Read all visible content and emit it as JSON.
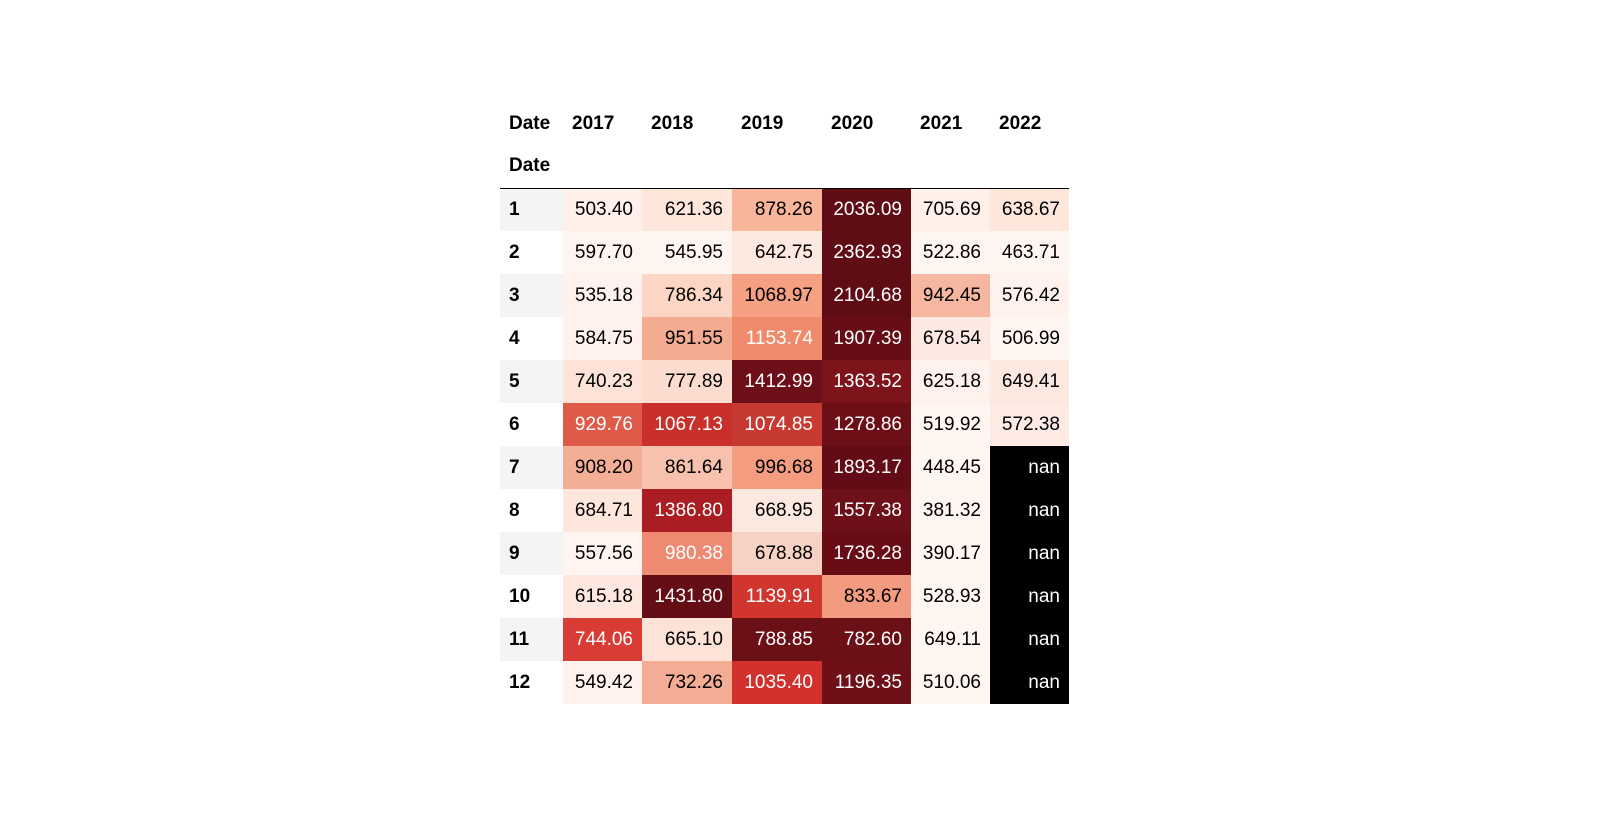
{
  "table": {
    "column_axis_name": "Date",
    "index_name": "Date",
    "columns": [
      "2017",
      "2018",
      "2019",
      "2020",
      "2021",
      "2022"
    ],
    "rows": [
      {
        "label": "1",
        "cells": [
          {
            "text": "503.40",
            "bg": "#fff0e9",
            "fg": "#000000"
          },
          {
            "text": "621.36",
            "bg": "#fee6da",
            "fg": "#000000"
          },
          {
            "text": "878.26",
            "bg": "#f9b59a",
            "fg": "#000000"
          },
          {
            "text": "2036.09",
            "bg": "#5f0c14",
            "fg": "#ffffff"
          },
          {
            "text": "705.69",
            "bg": "#fff0e9",
            "fg": "#000000"
          },
          {
            "text": "638.67",
            "bg": "#fee6da",
            "fg": "#000000"
          }
        ]
      },
      {
        "label": "2",
        "cells": [
          {
            "text": "597.70",
            "bg": "#fff5f0",
            "fg": "#000000"
          },
          {
            "text": "545.95",
            "bg": "#fff5f0",
            "fg": "#000000"
          },
          {
            "text": "642.75",
            "bg": "#fee9e0",
            "fg": "#000000"
          },
          {
            "text": "2362.93",
            "bg": "#5f0c14",
            "fg": "#ffffff"
          },
          {
            "text": "522.86",
            "bg": "#fff5f0",
            "fg": "#000000"
          },
          {
            "text": "463.71",
            "bg": "#fff5f0",
            "fg": "#000000"
          }
        ]
      },
      {
        "label": "3",
        "cells": [
          {
            "text": "535.18",
            "bg": "#fff1eb",
            "fg": "#000000"
          },
          {
            "text": "786.34",
            "bg": "#fcd5c4",
            "fg": "#000000"
          },
          {
            "text": "1068.97",
            "bg": "#f6a083",
            "fg": "#000000"
          },
          {
            "text": "2104.68",
            "bg": "#5f0c14",
            "fg": "#ffffff"
          },
          {
            "text": "942.45",
            "bg": "#f5b7a0",
            "fg": "#000000"
          },
          {
            "text": "576.42",
            "bg": "#fff1eb",
            "fg": "#000000"
          }
        ]
      },
      {
        "label": "4",
        "cells": [
          {
            "text": "584.75",
            "bg": "#fff1eb",
            "fg": "#000000"
          },
          {
            "text": "951.55",
            "bg": "#f4ab91",
            "fg": "#000000"
          },
          {
            "text": "1153.74",
            "bg": "#f08a6c",
            "fg": "#ffffff"
          },
          {
            "text": "1907.39",
            "bg": "#670d16",
            "fg": "#ffffff"
          },
          {
            "text": "678.54",
            "bg": "#fde9e1",
            "fg": "#000000"
          },
          {
            "text": "506.99",
            "bg": "#fff5f0",
            "fg": "#000000"
          }
        ]
      },
      {
        "label": "5",
        "cells": [
          {
            "text": "740.23",
            "bg": "#fde2d7",
            "fg": "#000000"
          },
          {
            "text": "777.89",
            "bg": "#fcdccf",
            "fg": "#000000"
          },
          {
            "text": "1412.99",
            "bg": "#6d0f18",
            "fg": "#ffffff"
          },
          {
            "text": "1363.52",
            "bg": "#7d141b",
            "fg": "#ffffff"
          },
          {
            "text": "625.18",
            "bg": "#fff1eb",
            "fg": "#000000"
          },
          {
            "text": "649.41",
            "bg": "#fde8df",
            "fg": "#000000"
          }
        ]
      },
      {
        "label": "6",
        "cells": [
          {
            "text": "929.76",
            "bg": "#e05a4a",
            "fg": "#ffffff"
          },
          {
            "text": "1067.13",
            "bg": "#c9302c",
            "fg": "#ffffff"
          },
          {
            "text": "1074.85",
            "bg": "#c73a31",
            "fg": "#ffffff"
          },
          {
            "text": "1278.86",
            "bg": "#6c0f17",
            "fg": "#ffffff"
          },
          {
            "text": "519.92",
            "bg": "#fff6f2",
            "fg": "#000000"
          },
          {
            "text": "572.38",
            "bg": "#fdebe3",
            "fg": "#000000"
          }
        ]
      },
      {
        "label": "7",
        "cells": [
          {
            "text": "908.20",
            "bg": "#f4ae96",
            "fg": "#000000"
          },
          {
            "text": "861.64",
            "bg": "#f7c1ae",
            "fg": "#000000"
          },
          {
            "text": "996.68",
            "bg": "#f39c80",
            "fg": "#000000"
          },
          {
            "text": "1893.17",
            "bg": "#630c15",
            "fg": "#ffffff"
          },
          {
            "text": "448.45",
            "bg": "#fff6f2",
            "fg": "#000000"
          },
          {
            "text": "nan",
            "bg": "#000000",
            "fg": "#ffffff"
          }
        ]
      },
      {
        "label": "8",
        "cells": [
          {
            "text": "684.71",
            "bg": "#fde6dc",
            "fg": "#000000"
          },
          {
            "text": "1386.80",
            "bg": "#a91d23",
            "fg": "#ffffff"
          },
          {
            "text": "668.95",
            "bg": "#fde8df",
            "fg": "#000000"
          },
          {
            "text": "1557.38",
            "bg": "#6e1019",
            "fg": "#ffffff"
          },
          {
            "text": "381.32",
            "bg": "#fff5f0",
            "fg": "#000000"
          },
          {
            "text": "nan",
            "bg": "#000000",
            "fg": "#ffffff"
          }
        ]
      },
      {
        "label": "9",
        "cells": [
          {
            "text": "557.56",
            "bg": "#fff4ef",
            "fg": "#000000"
          },
          {
            "text": "980.38",
            "bg": "#ef8a72",
            "fg": "#ffffff"
          },
          {
            "text": "678.88",
            "bg": "#f7d2c4",
            "fg": "#000000"
          },
          {
            "text": "1736.28",
            "bg": "#680d16",
            "fg": "#ffffff"
          },
          {
            "text": "390.17",
            "bg": "#fff6f2",
            "fg": "#000000"
          },
          {
            "text": "nan",
            "bg": "#000000",
            "fg": "#ffffff"
          }
        ]
      },
      {
        "label": "10",
        "cells": [
          {
            "text": "615.18",
            "bg": "#fde7de",
            "fg": "#000000"
          },
          {
            "text": "1431.80",
            "bg": "#650d15",
            "fg": "#ffffff"
          },
          {
            "text": "1139.91",
            "bg": "#d0352e",
            "fg": "#ffffff"
          },
          {
            "text": "833.67",
            "bg": "#f39b81",
            "fg": "#000000"
          },
          {
            "text": "528.93",
            "bg": "#fff6f2",
            "fg": "#000000"
          },
          {
            "text": "nan",
            "bg": "#000000",
            "fg": "#ffffff"
          }
        ]
      },
      {
        "label": "11",
        "cells": [
          {
            "text": "744.06",
            "bg": "#d93c34",
            "fg": "#ffffff"
          },
          {
            "text": "665.10",
            "bg": "#fde2d7",
            "fg": "#000000"
          },
          {
            "text": "788.85",
            "bg": "#6c1017",
            "fg": "#ffffff"
          },
          {
            "text": "782.60",
            "bg": "#6c1017",
            "fg": "#ffffff"
          },
          {
            "text": "649.11",
            "bg": "#fff6f2",
            "fg": "#000000"
          },
          {
            "text": "nan",
            "bg": "#000000",
            "fg": "#ffffff"
          }
        ]
      },
      {
        "label": "12",
        "cells": [
          {
            "text": "549.42",
            "bg": "#fff1eb",
            "fg": "#000000"
          },
          {
            "text": "732.26",
            "bg": "#f4ad94",
            "fg": "#000000"
          },
          {
            "text": "1035.40",
            "bg": "#d0312d",
            "fg": "#ffffff"
          },
          {
            "text": "1196.35",
            "bg": "#6e1018",
            "fg": "#ffffff"
          },
          {
            "text": "510.06",
            "bg": "#fff6f2",
            "fg": "#000000"
          },
          {
            "text": "nan",
            "bg": "#000000",
            "fg": "#ffffff"
          }
        ]
      }
    ]
  },
  "chart_data": {
    "type": "table",
    "title": "",
    "xlabel": "Date",
    "ylabel": "Date",
    "colormap": "Reds",
    "nan_color": "#000000",
    "categories": [
      "1",
      "2",
      "3",
      "4",
      "5",
      "6",
      "7",
      "8",
      "9",
      "10",
      "11",
      "12"
    ],
    "series": [
      {
        "name": "2017",
        "values": [
          503.4,
          597.7,
          535.18,
          584.75,
          740.23,
          929.76,
          908.2,
          684.71,
          557.56,
          615.18,
          744.06,
          549.42
        ]
      },
      {
        "name": "2018",
        "values": [
          621.36,
          545.95,
          786.34,
          951.55,
          777.89,
          1067.13,
          861.64,
          1386.8,
          980.38,
          1431.8,
          665.1,
          732.26
        ]
      },
      {
        "name": "2019",
        "values": [
          878.26,
          642.75,
          1068.97,
          1153.74,
          1412.99,
          1074.85,
          996.68,
          668.95,
          678.88,
          1139.91,
          788.85,
          1035.4
        ]
      },
      {
        "name": "2020",
        "values": [
          2036.09,
          2362.93,
          2104.68,
          1907.39,
          1363.52,
          1278.86,
          1893.17,
          1557.38,
          1736.28,
          833.67,
          782.6,
          1196.35
        ]
      },
      {
        "name": "2021",
        "values": [
          705.69,
          522.86,
          942.45,
          678.54,
          625.18,
          519.92,
          448.45,
          381.32,
          390.17,
          528.93,
          649.11,
          510.06
        ]
      },
      {
        "name": "2022",
        "values": [
          638.67,
          463.71,
          576.42,
          506.99,
          649.41,
          572.38,
          null,
          null,
          null,
          null,
          null,
          null
        ]
      }
    ]
  }
}
